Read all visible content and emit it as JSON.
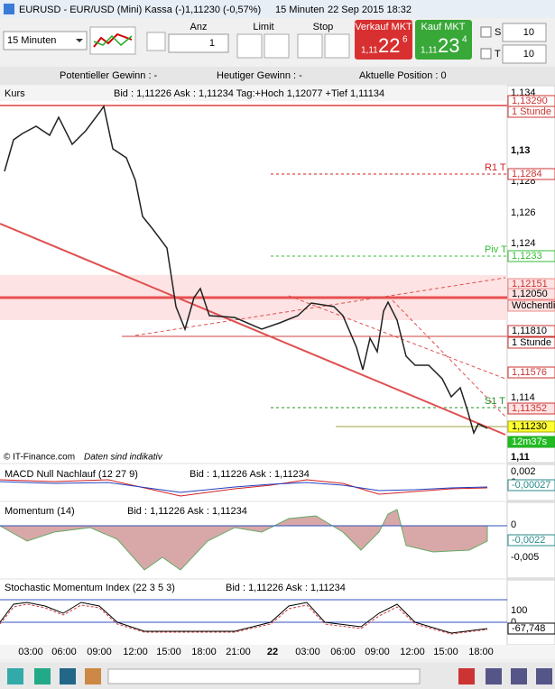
{
  "window": {
    "symbol": "EURUSD - EUR/USD (Mini) Kassa (-)",
    "change": "1,11230 (-0,57%)",
    "interval": "15 Minuten",
    "datetime": "22 Sep 2015 18:32"
  },
  "toolbar": {
    "interval": "15 Minuten",
    "qty_label": "Anz",
    "qty": "1",
    "limit": "Limit",
    "stop": "Stop",
    "sell": {
      "label": "Verkauf MKT",
      "prefix": "1,11",
      "big": "22",
      "small": "6"
    },
    "buy": {
      "label": "Kauf MKT",
      "prefix": "1,11",
      "big": "23",
      "small": "4"
    },
    "s_label": "S",
    "s_value": "10",
    "t_label": "T",
    "t_value": "10"
  },
  "info": {
    "potential": "Potentieller Gewinn : -",
    "today": "Heutiger Gewinn : -",
    "position": "Aktuelle Position : 0"
  },
  "main": {
    "title": "Kurs",
    "quote": "Bid : 1,11226 Ask : 1,11234 Tag:+Hoch 1,12077 +Tief 1,11134",
    "axis": [
      "1,134",
      "1,13",
      "1,128",
      "1,126",
      "1,124",
      "1,114",
      "1,11"
    ],
    "levels": {
      "r1": "R1 T",
      "piv": "Piv T",
      "s1": "S1 T"
    },
    "tags": [
      "1,13290",
      "1 Stunde",
      "1,1284",
      "1,1233",
      "1,12151",
      "1,12050",
      "Wöchentlic",
      "1,11810",
      "1 Stunde",
      "1,11576",
      "1,11352",
      "1,11230",
      "12m37s"
    ],
    "copyright": "© IT-Finance.com",
    "note": "Daten sind indikativ"
  },
  "macd": {
    "title": "MACD Null Nachlauf (12 27 9)",
    "quote": "Bid : 1,11226 Ask : 1,11234",
    "axis": [
      "0,002",
      "0"
    ],
    "tag": "-0,00027"
  },
  "momentum": {
    "title": "Momentum (14)",
    "quote": "Bid : 1,11226 Ask : 1,11234",
    "axis": [
      "0",
      "-0,005"
    ],
    "tag": "-0,0022"
  },
  "stochastic": {
    "title": "Stochastic Momentum Index (22 3 5 3)",
    "quote": "Bid : 1,11226 Ask : 1,11234",
    "axis": [
      "100",
      "0"
    ],
    "tag": "-67,748"
  },
  "time_axis": [
    "03:00",
    "06:00",
    "09:00",
    "12:00",
    "15:00",
    "18:00",
    "21:00",
    "22",
    "03:00",
    "06:00",
    "09:00",
    "12:00",
    "15:00",
    "18:00"
  ]
}
